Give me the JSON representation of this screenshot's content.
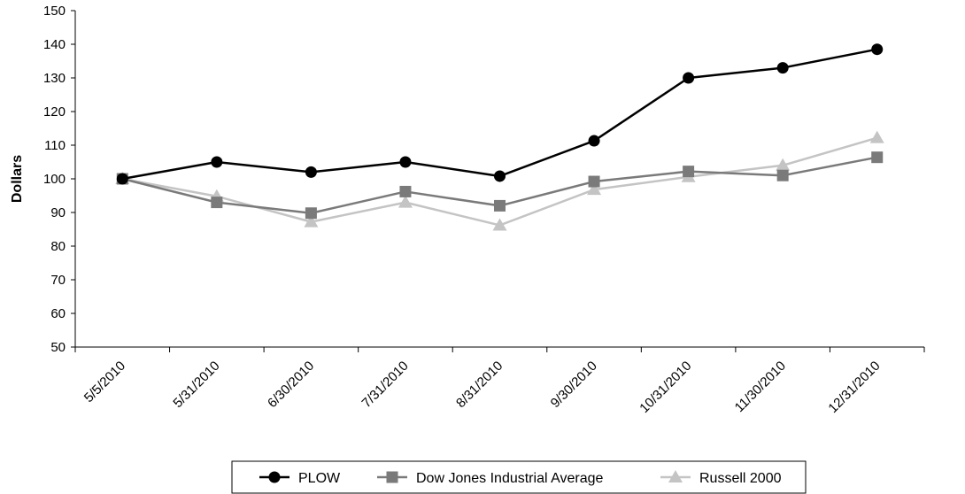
{
  "chart_data": {
    "type": "line",
    "ylabel": "Dollars",
    "xlabel": "",
    "ylim": [
      50,
      150
    ],
    "yticks": [
      50,
      60,
      70,
      80,
      90,
      100,
      110,
      120,
      130,
      140,
      150
    ],
    "categories": [
      "5/5/2010",
      "5/31/2010",
      "6/30/2010",
      "7/31/2010",
      "8/31/2010",
      "9/30/2010",
      "10/31/2010",
      "11/30/2010",
      "12/31/2010"
    ],
    "grid": false,
    "legend_position": "bottom",
    "series": [
      {
        "name": "PLOW",
        "color": "#000000",
        "marker": "circle",
        "values": [
          100,
          105,
          102,
          105,
          100.8,
          111.3,
          130,
          133,
          138.5
        ]
      },
      {
        "name": "Dow Jones Industrial Average",
        "color": "#7a7a7a",
        "marker": "square",
        "values": [
          100,
          93,
          89.8,
          96.2,
          92,
          99.2,
          102.2,
          101,
          106.4
        ]
      },
      {
        "name": "Russell 2000",
        "color": "#c4c4c4",
        "marker": "triangle",
        "values": [
          100,
          94.8,
          87.2,
          93,
          86.2,
          96.8,
          100.6,
          104,
          112.2
        ]
      }
    ]
  }
}
